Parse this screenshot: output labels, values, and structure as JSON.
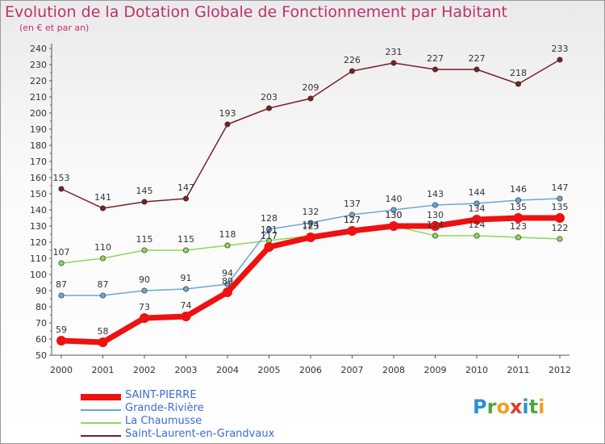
{
  "title": "Evolution de la Dotation Globale de Fonctionnement par Habitant",
  "subtitle": "(en € et par an)",
  "logo": {
    "letters": [
      {
        "ch": "P",
        "color": "#2f8fd4"
      },
      {
        "ch": "r",
        "color": "#4aa83a"
      },
      {
        "ch": "o",
        "color": "#f0a020"
      },
      {
        "ch": "x",
        "color": "#e03a2a"
      },
      {
        "ch": "i",
        "color": "#2f8fd4"
      },
      {
        "ch": "t",
        "color": "#4aa83a"
      },
      {
        "ch": "i",
        "color": "#f0a020"
      }
    ]
  },
  "chart_data": {
    "type": "line",
    "x": [
      2000,
      2001,
      2002,
      2003,
      2004,
      2005,
      2006,
      2007,
      2008,
      2009,
      2010,
      2011,
      2012
    ],
    "ylim": [
      50,
      240
    ],
    "yticks": [
      50,
      60,
      70,
      80,
      90,
      100,
      110,
      120,
      130,
      140,
      150,
      160,
      170,
      180,
      190,
      200,
      210,
      220,
      230,
      240
    ],
    "grid": false,
    "legend_position": "bottom-left",
    "series": [
      {
        "name": "Saint-Laurent-en-Grandvaux",
        "color": "#7a1f26",
        "values": [
          153,
          141,
          145,
          147,
          193,
          203,
          209,
          226,
          231,
          227,
          227,
          218,
          233
        ]
      },
      {
        "name": "La Chaumusse",
        "color": "#8fd65a",
        "values": [
          107,
          110,
          115,
          115,
          118,
          121,
          124,
          127,
          130,
          124,
          124,
          123,
          122
        ]
      },
      {
        "name": "Grande-Rivière",
        "color": "#6aa7d6",
        "values": [
          87,
          87,
          90,
          91,
          94,
          128,
          132,
          137,
          140,
          143,
          144,
          146,
          147
        ]
      },
      {
        "name": "SAINT-PIERRE",
        "color": "#ee1111",
        "values": [
          59,
          58,
          73,
          74,
          89,
          117,
          123,
          127,
          130,
          130,
          134,
          135,
          135
        ]
      }
    ]
  }
}
